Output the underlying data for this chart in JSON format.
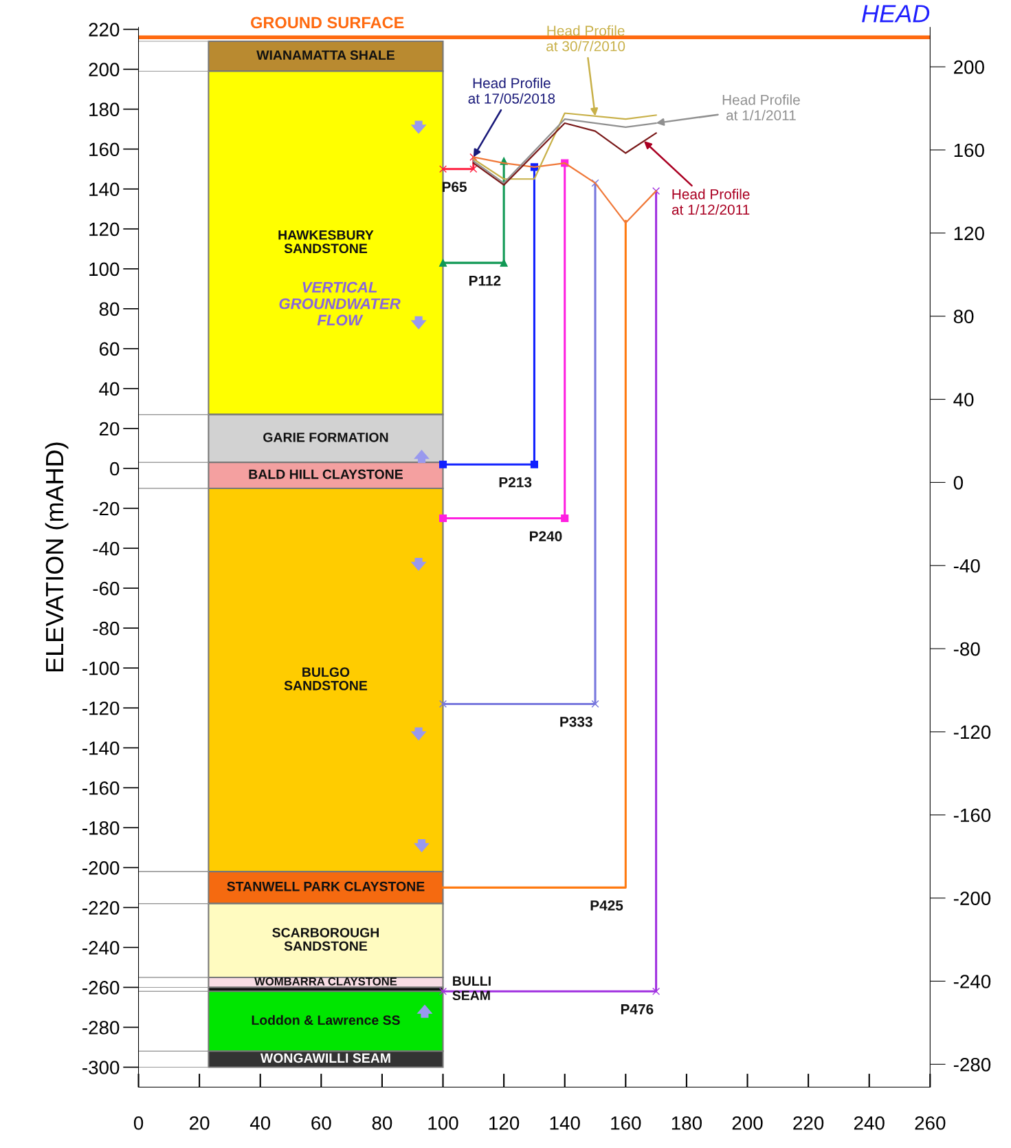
{
  "chart_data": {
    "type": "line",
    "ylabel": "ELEVATION (mAHD)",
    "y2label": "HEAD",
    "xlim": [
      0,
      260
    ],
    "xticks": [
      0,
      20,
      40,
      60,
      80,
      100,
      120,
      140,
      160,
      180,
      200,
      220,
      240,
      260
    ],
    "ylim": [
      -310,
      221
    ],
    "yticks": [
      220,
      200,
      180,
      160,
      140,
      120,
      100,
      80,
      60,
      40,
      20,
      0,
      -20,
      -40,
      -60,
      -80,
      -100,
      -120,
      -140,
      -160,
      -180,
      -200,
      -220,
      -240,
      -260,
      -280,
      -300
    ],
    "y2lim": [
      -291,
      219
    ],
    "y2ticks": [
      200,
      160,
      120,
      80,
      40,
      0,
      -40,
      -80,
      -120,
      -160,
      -200,
      -240,
      -280
    ],
    "grid": false,
    "line_style": "solid",
    "ref_lines": [
      {
        "axis": "y",
        "value": 216,
        "label": "GROUND SURFACE",
        "color": "#ff6a10"
      }
    ],
    "bands": [
      {
        "axis": "y",
        "from": 199,
        "to": 214,
        "label": "WIANAMATTA SHALE",
        "color": "#b98a30"
      },
      {
        "axis": "y",
        "from": 27,
        "to": 199,
        "label": "HAWKESBURY\nSANDSTONE",
        "color": "#ffff00"
      },
      {
        "axis": "y",
        "from": 3,
        "to": 27,
        "label": "GARIE FORMATION",
        "color": "#d2d2d2"
      },
      {
        "axis": "y",
        "from": -10,
        "to": 3,
        "label": "BALD HILL CLAYSTONE",
        "color": "#f4a0a0"
      },
      {
        "axis": "y",
        "from": -202,
        "to": -10,
        "label": "BULGO\nSANDSTONE",
        "color": "#ffcc00"
      },
      {
        "axis": "y",
        "from": -218,
        "to": -202,
        "label": "STANWELL PARK CLAYSTONE",
        "color": "#f56a10"
      },
      {
        "axis": "y",
        "from": -255,
        "to": -218,
        "label": "SCARBOROUGH\nSANDSTONE",
        "color": "#fffbc0"
      },
      {
        "axis": "y",
        "from": -260,
        "to": -255,
        "label": "WOMBARRA CLAYSTONE",
        "color": "#f8dce4"
      },
      {
        "axis": "y",
        "from": -262,
        "to": -260,
        "label": "BULLI\nSEAM",
        "color": "#111111"
      },
      {
        "axis": "y",
        "from": -292,
        "to": -262,
        "label": "Loddon & Lawrence SS",
        "color": "#00e600"
      },
      {
        "axis": "y",
        "from": -300,
        "to": -292,
        "label": "WONGAWILLI SEAM",
        "color": "#333333"
      }
    ],
    "series": [
      {
        "name": "P65",
        "color": "#ff2040",
        "marker": "cross",
        "x": [
          100,
          110,
          110
        ],
        "values": [
          150,
          150,
          156
        ]
      },
      {
        "name": "P112",
        "color": "#119955",
        "marker": "triangle",
        "x": [
          100,
          120,
          120
        ],
        "values": [
          103,
          103,
          154
        ]
      },
      {
        "name": "P213",
        "color": "#1020ff",
        "marker": "square",
        "x": [
          100,
          130,
          130
        ],
        "values": [
          2,
          2,
          151
        ]
      },
      {
        "name": "P240",
        "color": "#ff20e0",
        "marker": "square",
        "x": [
          100,
          140,
          140
        ],
        "values": [
          -25,
          -25,
          153
        ]
      },
      {
        "name": "P333",
        "color": "#7777dd",
        "marker": "cross",
        "x": [
          100,
          150,
          150
        ],
        "values": [
          -118,
          -118,
          143
        ]
      },
      {
        "name": "P425",
        "color": "#ff7a10",
        "marker": "none",
        "x": [
          100,
          160,
          160
        ],
        "values": [
          -210,
          -210,
          124
        ]
      },
      {
        "name": "P476",
        "color": "#a030e0",
        "marker": "cross",
        "x": [
          100,
          170,
          170
        ],
        "values": [
          -262,
          -262,
          139
        ]
      },
      {
        "color": "#f07838",
        "marker": "none",
        "x": [
          110,
          120,
          130,
          140,
          150,
          160,
          170
        ],
        "values": [
          156,
          153,
          151,
          153,
          143,
          123,
          139
        ]
      },
      {
        "color": "#c8b048",
        "marker": "none",
        "x": [
          110,
          120,
          130,
          140,
          160,
          170
        ],
        "values": [
          155,
          145,
          145,
          178,
          175,
          177
        ]
      },
      {
        "color": "#909090",
        "marker": "none",
        "x": [
          110,
          120,
          140,
          160,
          170
        ],
        "values": [
          154,
          143,
          175,
          171,
          173
        ]
      },
      {
        "color": "#7a1a1a",
        "marker": "none",
        "x": [
          110,
          120,
          140,
          150,
          160,
          170
        ],
        "values": [
          153,
          142,
          173,
          169,
          158,
          168
        ]
      }
    ],
    "annotations": [
      "VERTICAL\nGROUNDWATER\nFLOW",
      {
        "text": "Head Profile\nat 17/05/2018",
        "x": 110,
        "y": 156
      },
      {
        "text": "Head Profile\nat 30/7/2010",
        "x": 150,
        "y": 176.5
      },
      {
        "text": "Head Profile\nat 1/1/2011",
        "x": 170,
        "y": 173
      },
      {
        "text": "Head Profile\nat 1/12/2011",
        "x": 166,
        "y": 164
      }
    ]
  }
}
